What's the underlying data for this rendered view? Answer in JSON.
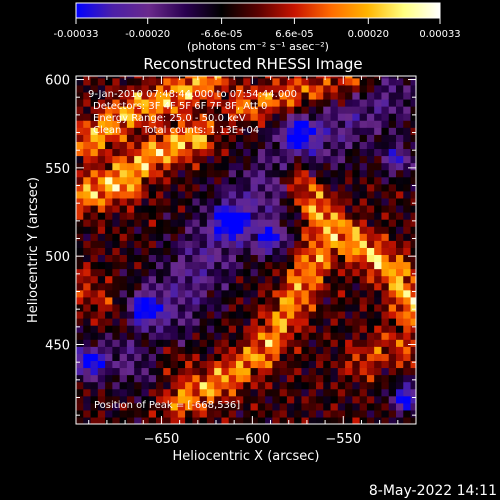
{
  "colorbar": {
    "ticks": [
      "-0.00033",
      "-0.00020",
      "-6.6e-05",
      "6.6e-05",
      "0.00020",
      "0.00033"
    ],
    "unit_label": "(photons cm⁻² s⁻¹ asec⁻²)",
    "range": [
      -0.00033,
      0.00033
    ],
    "colors": [
      "#0000ff",
      "#4b1fa8",
      "#6a2a8c",
      "#2a0050",
      "#000000",
      "#5a0000",
      "#c81400",
      "#ff6a00",
      "#ffb400",
      "#ffff80",
      "#ffffff"
    ]
  },
  "overlay": {
    "time_range": "9-Jan-2010 07:48:44.000 to 07:54:44.000",
    "detectors": "Detectors: 3F 4F 5F 6F 7F 8F, Att 0",
    "energy": "Energy Range: 25.0 - 50.0 keV",
    "clean_label": "Clean",
    "counts": "Total counts: 1.13E+04",
    "peak": "Position of Peak = [-668,536]"
  },
  "footer": {
    "date": "8-May-2022 14:11"
  },
  "chart_data": {
    "type": "heatmap",
    "title": "Reconstructed RHESSI Image",
    "xlabel": "Heliocentric X (arcsec)",
    "ylabel": "Heliocentric Y (arcsec)",
    "xlim": [
      -697,
      -510
    ],
    "ylim": [
      405,
      602
    ],
    "xticks": [
      -650,
      -600,
      -550
    ],
    "yticks": [
      450,
      500,
      550,
      600
    ],
    "peak": [
      -668,
      536
    ],
    "bright_ridges": [
      {
        "path": [
          [
            -690,
            565
          ],
          [
            -668,
            582
          ],
          [
            -645,
            590
          ],
          [
            -625,
            600
          ]
        ],
        "intensity": 0.00028
      },
      {
        "path": [
          [
            -690,
            535
          ],
          [
            -672,
            545
          ],
          [
            -650,
            560
          ],
          [
            -630,
            568
          ]
        ],
        "intensity": 0.0003
      },
      {
        "path": [
          [
            -605,
            585
          ],
          [
            -585,
            590
          ],
          [
            -560,
            595
          ],
          [
            -540,
            600
          ]
        ],
        "intensity": 0.00022
      },
      {
        "path": [
          [
            -575,
            545
          ],
          [
            -560,
            520
          ],
          [
            -540,
            505
          ],
          [
            -520,
            490
          ],
          [
            -512,
            470
          ]
        ],
        "intensity": 0.0003
      },
      {
        "path": [
          [
            -640,
            418
          ],
          [
            -620,
            428
          ],
          [
            -595,
            445
          ],
          [
            -580,
            470
          ],
          [
            -565,
            500
          ]
        ],
        "intensity": 0.00026
      },
      {
        "path": [
          [
            -695,
            485
          ],
          [
            -680,
            470
          ],
          [
            -660,
            455
          ],
          [
            -642,
            440
          ]
        ],
        "intensity": 0.00012
      },
      {
        "path": [
          [
            -540,
            440
          ],
          [
            -525,
            450
          ],
          [
            -510,
            445
          ]
        ],
        "intensity": 0.00015
      }
    ],
    "dark_band": {
      "path": [
        [
          -665,
          445
        ],
        [
          -640,
          480
        ],
        [
          -615,
          515
        ],
        [
          -590,
          540
        ],
        [
          -560,
          570
        ],
        [
          -530,
          590
        ]
      ],
      "intensity": -0.00015
    },
    "deep_spots": [
      {
        "x": -690,
        "y": 440,
        "intensity": -0.0003
      },
      {
        "x": -660,
        "y": 470,
        "intensity": -0.00028
      },
      {
        "x": -612,
        "y": 520,
        "intensity": -0.00028
      },
      {
        "x": -590,
        "y": 510,
        "intensity": -0.00026
      },
      {
        "x": -575,
        "y": 570,
        "intensity": -0.00028
      },
      {
        "x": -515,
        "y": 420,
        "intensity": -0.0003
      },
      {
        "x": -520,
        "y": 555,
        "intensity": -0.00022
      }
    ]
  }
}
